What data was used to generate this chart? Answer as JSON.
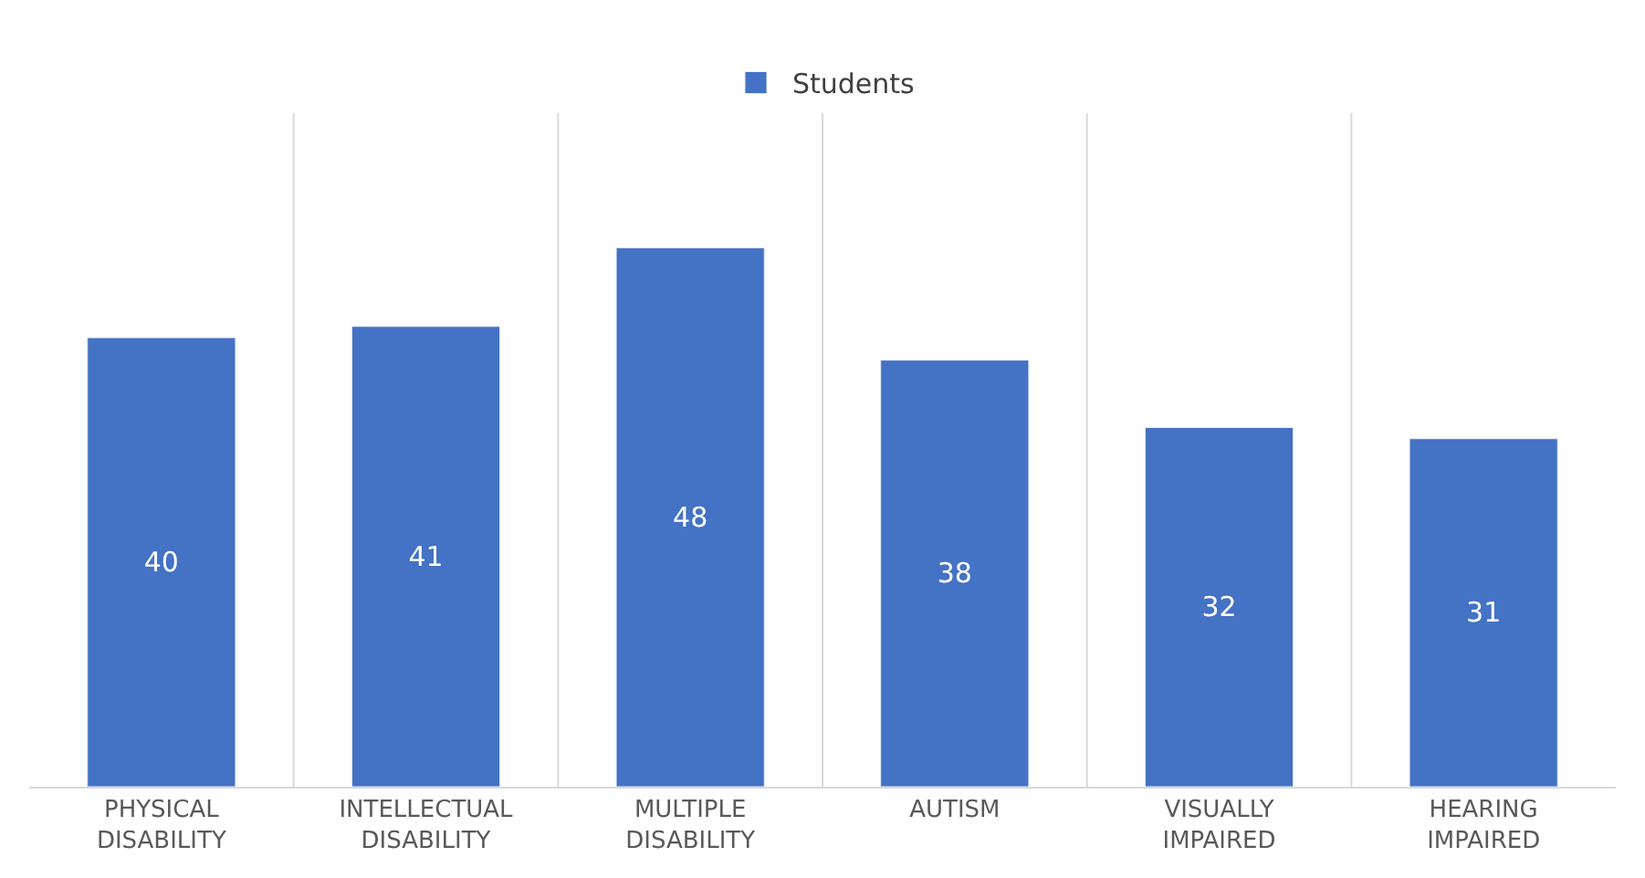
{
  "chart_data": {
    "type": "bar",
    "categories": [
      "PHYSICAL\nDISABILITY",
      "INTELLECTUAL\nDISABILITY",
      "MULTIPLE\nDISABILITY",
      "AUTISM",
      "VISUALLY\nIMPAIRED",
      "HEARING\nIMPAIRED"
    ],
    "series": [
      {
        "name": "Students",
        "color": "#4472c4",
        "values": [
          40,
          41,
          48,
          38,
          32,
          31
        ]
      }
    ],
    "ylim": [
      0,
      60
    ],
    "data_labels": true,
    "grid": "x",
    "legend": "top",
    "tick_labels": "x"
  }
}
